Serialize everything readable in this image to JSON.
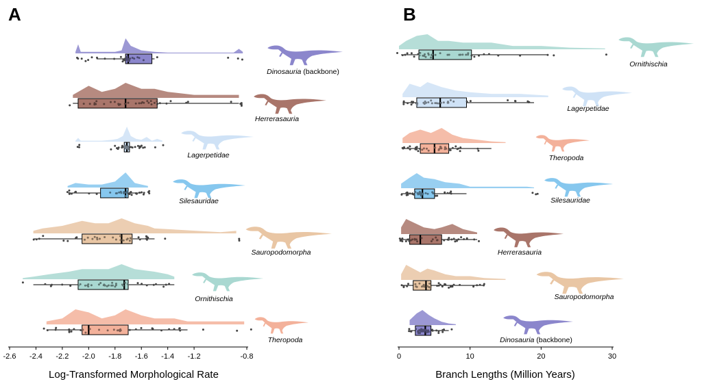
{
  "colors": {
    "Dinosauria": "#8b86cc",
    "Herrerasauria": "#a9756a",
    "Lagerpetidae": "#cfe2f6",
    "Silesauridae": "#86c7ee",
    "Sauropodomorpha": "#e9c6a4",
    "Ornithischia": "#a9d8d1",
    "Theropoda": "#f3b19a"
  },
  "icons": [
    "dinosaur-silhouette-icon"
  ],
  "chart_data": [
    {
      "panel": "A",
      "type": "raincloud",
      "orientation": "horizontal",
      "xlabel": "Log-Transformed Morphological Rate",
      "xlim": [
        -2.6,
        -0.8
      ],
      "xticks": [
        "-2.6",
        "-2.4",
        "-2.2",
        "-2.0",
        "-1.8",
        "-1.6",
        "-1.4",
        "-1.2",
        "-0.8"
      ],
      "xtick_values": [
        -2.6,
        -2.4,
        -2.2,
        -2.0,
        -1.8,
        -1.6,
        -1.4,
        -1.2,
        -0.8
      ],
      "groups": [
        {
          "clade": "Dinosauria",
          "suffix": "(backbone)",
          "whisker_low": -1.94,
          "q1": -1.72,
          "median": -1.7,
          "q3": -1.52,
          "whisker_high": -1.5,
          "density": [
            [
              -2.1,
              1
            ],
            [
              -2.08,
              6
            ],
            [
              -2.06,
              1
            ],
            [
              -2.0,
              1
            ],
            [
              -1.9,
              1
            ],
            [
              -1.8,
              1
            ],
            [
              -1.75,
              2
            ],
            [
              -1.72,
              10
            ],
            [
              -1.68,
              5
            ],
            [
              -1.6,
              2
            ],
            [
              -1.5,
              1
            ],
            [
              -1.4,
              0.5
            ],
            [
              -0.9,
              0.5
            ],
            [
              -0.86,
              3
            ],
            [
              -0.83,
              1
            ]
          ]
        },
        {
          "clade": "Herrerasauria",
          "suffix": "",
          "whisker_low": -2.12,
          "q1": -2.08,
          "median": -1.72,
          "q3": -1.48,
          "whisker_high": -0.86,
          "density": [
            [
              -2.12,
              1
            ],
            [
              -2.0,
              4
            ],
            [
              -1.9,
              2
            ],
            [
              -1.8,
              3
            ],
            [
              -1.72,
              5
            ],
            [
              -1.6,
              3
            ],
            [
              -1.5,
              3
            ],
            [
              -1.4,
              2
            ],
            [
              -1.2,
              1
            ],
            [
              -1.0,
              1
            ],
            [
              -0.86,
              1
            ]
          ]
        },
        {
          "clade": "Lagerpetidae",
          "suffix": "",
          "whisker_low": -1.74,
          "q1": -1.73,
          "median": -1.71,
          "q3": -1.69,
          "whisker_high": -1.68,
          "density": [
            [
              -2.1,
              1
            ],
            [
              -2.08,
              4
            ],
            [
              -2.06,
              1
            ],
            [
              -1.9,
              1
            ],
            [
              -1.82,
              2
            ],
            [
              -1.78,
              3
            ],
            [
              -1.74,
              6
            ],
            [
              -1.71,
              16
            ],
            [
              -1.68,
              6
            ],
            [
              -1.64,
              3
            ],
            [
              -1.6,
              2
            ],
            [
              -1.56,
              5
            ],
            [
              -1.52,
              1
            ],
            [
              -1.48,
              3
            ],
            [
              -1.44,
              1
            ]
          ]
        },
        {
          "clade": "Silesauridae",
          "suffix": "",
          "whisker_low": -2.15,
          "q1": -1.91,
          "median": -1.72,
          "q3": -1.7,
          "whisker_high": -1.6,
          "density": [
            [
              -2.16,
              1
            ],
            [
              -2.1,
              3
            ],
            [
              -2.0,
              2
            ],
            [
              -1.9,
              2
            ],
            [
              -1.8,
              4
            ],
            [
              -1.72,
              10
            ],
            [
              -1.65,
              3
            ],
            [
              -1.6,
              2
            ],
            [
              -1.55,
              1
            ]
          ]
        },
        {
          "clade": "Sauropodomorpha",
          "suffix": "",
          "whisker_low": -2.42,
          "q1": -2.05,
          "median": -1.75,
          "q3": -1.67,
          "whisker_high": -1.5,
          "density": [
            [
              -2.42,
              1
            ],
            [
              -2.35,
              2
            ],
            [
              -2.2,
              3
            ],
            [
              -2.05,
              5
            ],
            [
              -1.95,
              4
            ],
            [
              -1.85,
              4
            ],
            [
              -1.75,
              6
            ],
            [
              -1.65,
              4
            ],
            [
              -1.55,
              3
            ],
            [
              -1.5,
              2
            ],
            [
              -1.0,
              0.5
            ],
            [
              -0.88,
              1
            ]
          ]
        },
        {
          "clade": "Ornithischia",
          "suffix": "",
          "whisker_low": -2.42,
          "q1": -2.08,
          "median": -1.73,
          "q3": -1.7,
          "whisker_high": -1.35,
          "density": [
            [
              -2.5,
              0.5
            ],
            [
              -2.42,
              1
            ],
            [
              -2.3,
              2
            ],
            [
              -2.15,
              3
            ],
            [
              -2.05,
              4
            ],
            [
              -1.95,
              4
            ],
            [
              -1.85,
              4
            ],
            [
              -1.75,
              6
            ],
            [
              -1.65,
              4
            ],
            [
              -1.5,
              3
            ],
            [
              -1.4,
              2
            ],
            [
              -1.35,
              1
            ]
          ]
        },
        {
          "clade": "Theropoda",
          "suffix": "",
          "whisker_low": -2.32,
          "q1": -2.05,
          "median": -2.0,
          "q3": -1.7,
          "whisker_high": -1.25,
          "density": [
            [
              -2.32,
              1
            ],
            [
              -2.2,
              2
            ],
            [
              -2.1,
              5
            ],
            [
              -2.0,
              4
            ],
            [
              -1.9,
              2
            ],
            [
              -1.8,
              3
            ],
            [
              -1.72,
              5
            ],
            [
              -1.6,
              3
            ],
            [
              -1.5,
              2
            ],
            [
              -1.35,
              2
            ],
            [
              -1.25,
              1
            ],
            [
              -0.82,
              1
            ]
          ]
        }
      ]
    },
    {
      "panel": "B",
      "type": "raincloud",
      "orientation": "horizontal",
      "xlabel": "Branch Lengths (Million Years)",
      "xlim": [
        0,
        30
      ],
      "xticks": [
        "0",
        "10",
        "20",
        "30"
      ],
      "xtick_values": [
        0,
        10,
        20,
        30
      ],
      "groups": [
        {
          "clade": "Ornithischia",
          "suffix": "",
          "whisker_low": 0.3,
          "q1": 2.8,
          "median": 4.8,
          "q3": 10.2,
          "whisker_high": 21.0,
          "density": [
            [
              0,
              2
            ],
            [
              1,
              5
            ],
            [
              2.5,
              8
            ],
            [
              4,
              9
            ],
            [
              5.5,
              5
            ],
            [
              7,
              5
            ],
            [
              9,
              4
            ],
            [
              11,
              4
            ],
            [
              13,
              4
            ],
            [
              16,
              2
            ],
            [
              20,
              2
            ],
            [
              24,
              1
            ],
            [
              29,
              0.5
            ]
          ]
        },
        {
          "clade": "Lagerpetidae",
          "suffix": "",
          "whisker_low": 0.5,
          "q1": 2.5,
          "median": 5.8,
          "q3": 9.5,
          "whisker_high": 19.0,
          "density": [
            [
              0.5,
              2
            ],
            [
              1.5,
              8
            ],
            [
              3,
              6
            ],
            [
              4,
              9
            ],
            [
              6,
              6
            ],
            [
              8,
              4
            ],
            [
              10,
              3
            ],
            [
              13,
              2
            ],
            [
              17,
              2
            ],
            [
              21,
              1
            ]
          ]
        },
        {
          "clade": "Theropoda",
          "suffix": "",
          "whisker_low": 0.5,
          "q1": 3.0,
          "median": 5.0,
          "q3": 7.0,
          "whisker_high": 13.0,
          "density": [
            [
              0.5,
              3
            ],
            [
              1.5,
              6
            ],
            [
              3,
              8
            ],
            [
              4.5,
              6
            ],
            [
              6,
              9
            ],
            [
              7.5,
              5
            ],
            [
              9,
              3
            ],
            [
              11,
              2
            ],
            [
              13,
              1
            ],
            [
              15,
              0.5
            ]
          ]
        },
        {
          "clade": "Silesauridae",
          "suffix": "",
          "whisker_low": 0.3,
          "q1": 2.2,
          "median": 3.3,
          "q3": 5.0,
          "whisker_high": 9.5,
          "density": [
            [
              0.3,
              3
            ],
            [
              1.5,
              7
            ],
            [
              2.5,
              10
            ],
            [
              3.5,
              7
            ],
            [
              5,
              6
            ],
            [
              6.5,
              4
            ],
            [
              8.5,
              3
            ],
            [
              10,
              1
            ],
            [
              18,
              1
            ],
            [
              19,
              0.5
            ]
          ]
        },
        {
          "clade": "Herrerasauria",
          "suffix": "",
          "whisker_low": 0.3,
          "q1": 1.5,
          "median": 3.0,
          "q3": 6.0,
          "whisker_high": 11.0,
          "density": [
            [
              0.3,
              4
            ],
            [
              1,
              9
            ],
            [
              2,
              7
            ],
            [
              3.5,
              4
            ],
            [
              5,
              3
            ],
            [
              6,
              4
            ],
            [
              7.5,
              6
            ],
            [
              9,
              3
            ],
            [
              11,
              1
            ]
          ]
        },
        {
          "clade": "Sauropodomorpha",
          "suffix": "",
          "whisker_low": 0.3,
          "q1": 2.0,
          "median": 3.8,
          "q3": 4.5,
          "whisker_high": 12.0,
          "density": [
            [
              0.3,
              3
            ],
            [
              1,
              8
            ],
            [
              2,
              6
            ],
            [
              3,
              4
            ],
            [
              4,
              6
            ],
            [
              5,
              5
            ],
            [
              6.5,
              3
            ],
            [
              8,
              2
            ],
            [
              10,
              2
            ],
            [
              12,
              1
            ],
            [
              15,
              0.5
            ]
          ]
        },
        {
          "clade": "Dinosauria",
          "suffix": "(backbone)",
          "whisker_low": 1.5,
          "q1": 2.3,
          "median": 3.7,
          "q3": 4.5,
          "whisker_high": 7.0,
          "density": [
            [
              1.5,
              3
            ],
            [
              2.5,
              7
            ],
            [
              3.3,
              9
            ],
            [
              4.2,
              6
            ],
            [
              5,
              4
            ],
            [
              6,
              2
            ],
            [
              7,
              1
            ],
            [
              8,
              0.5
            ]
          ]
        }
      ]
    }
  ],
  "panels": [
    {
      "letter": "A"
    },
    {
      "letter": "B"
    }
  ]
}
